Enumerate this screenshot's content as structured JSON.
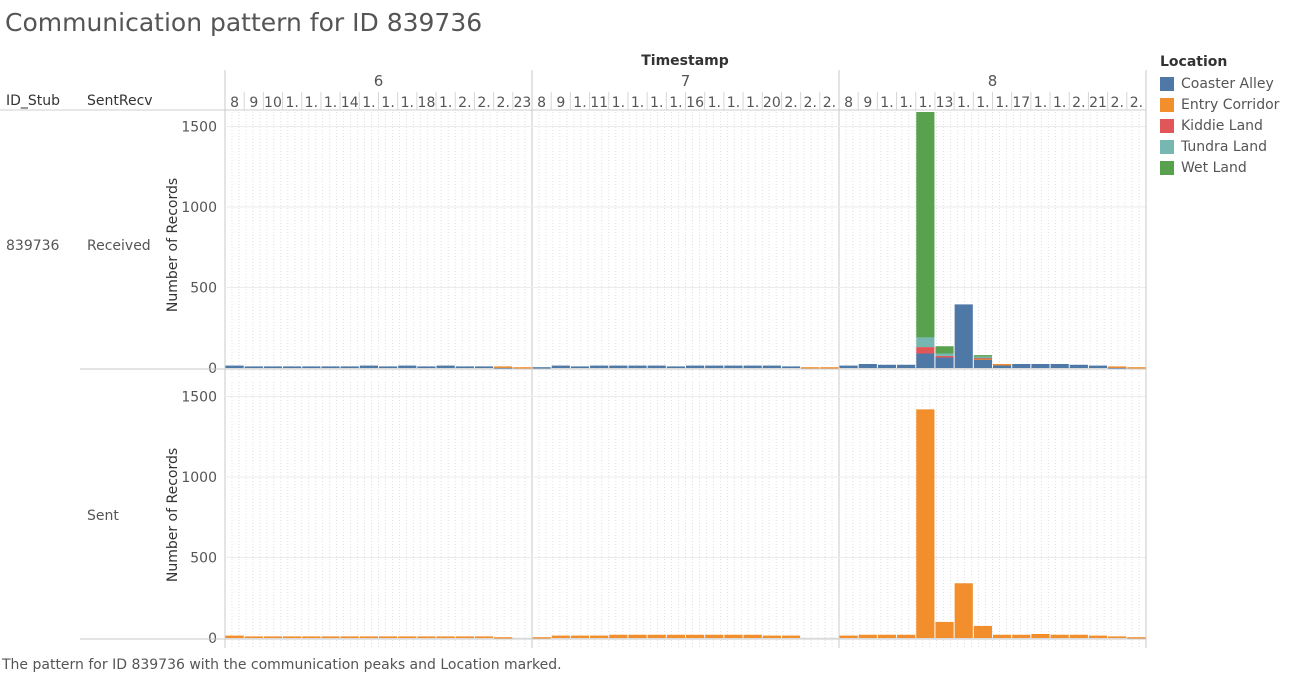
{
  "title": "Communication pattern for ID 839736",
  "caption": "The pattern for ID 839736 with the communication peaks and Location marked.",
  "colors": {
    "Coaster Alley": "#4e79a7",
    "Entry Corridor": "#f28e2b",
    "Kiddie Land": "#e15759",
    "Tundra Land": "#76b7b2",
    "Wet Land": "#59a14f"
  },
  "chart_data": {
    "type": "bar",
    "title": "Communication pattern for ID 839736",
    "column_header": "Timestamp",
    "row_headers": [
      "ID_Stub",
      "SentRecv"
    ],
    "id_stub": "839736",
    "ylabel": "Number of Records",
    "ylim": [
      0,
      1650
    ],
    "yticks": [
      0,
      500,
      1000,
      1500
    ],
    "grid": true,
    "legend": {
      "title": "Location",
      "position": "right",
      "entries": [
        "Coaster Alley",
        "Entry Corridor",
        "Kiddie Land",
        "Tundra Land",
        "Wet Land"
      ]
    },
    "days": [
      {
        "label": "6",
        "ticks": [
          "8",
          "9",
          "10",
          "1.",
          "1.",
          "1.",
          "14",
          "1.",
          "1.",
          "1.",
          "18",
          "1.",
          "2.",
          "2.",
          "2.",
          "23"
        ]
      },
      {
        "label": "7",
        "ticks": [
          "8",
          "9",
          "1.",
          "11",
          "1.",
          "1.",
          "1.",
          "1.",
          "16",
          "1.",
          "1.",
          "1.",
          "20",
          "2.",
          "2.",
          "2."
        ]
      },
      {
        "label": "8",
        "ticks": [
          "8",
          "9",
          "1.",
          "1.",
          "1.",
          "13",
          "1.",
          "1.",
          "1.",
          "17",
          "1.",
          "1.",
          "2.",
          "21",
          "2.",
          "2."
        ]
      }
    ],
    "panels": [
      {
        "name": "Received",
        "days": [
          {
            "Coaster Alley": [
              15,
              10,
              10,
              10,
              10,
              10,
              10,
              15,
              10,
              15,
              10,
              15,
              10,
              10,
              5,
              0
            ],
            "Entry Corridor": [
              0,
              0,
              0,
              0,
              0,
              0,
              0,
              0,
              0,
              0,
              0,
              0,
              0,
              0,
              5,
              5
            ]
          },
          {
            "Coaster Alley": [
              5,
              15,
              10,
              15,
              15,
              15,
              15,
              10,
              15,
              15,
              15,
              15,
              15,
              10,
              0,
              0
            ],
            "Entry Corridor": [
              0,
              0,
              0,
              0,
              0,
              0,
              0,
              0,
              0,
              0,
              0,
              0,
              0,
              0,
              5,
              5
            ]
          },
          {
            "Coaster Alley": [
              15,
              25,
              20,
              20,
              90,
              65,
              395,
              55,
              20,
              25,
              25,
              25,
              20,
              15,
              5,
              0
            ],
            "Entry Corridor": [
              0,
              0,
              0,
              0,
              0,
              0,
              0,
              5,
              5,
              0,
              0,
              0,
              0,
              0,
              5,
              5
            ],
            "Kiddie Land": [
              0,
              0,
              0,
              0,
              40,
              10,
              0,
              5,
              0,
              0,
              0,
              0,
              0,
              0,
              0,
              0
            ],
            "Tundra Land": [
              0,
              0,
              0,
              0,
              60,
              15,
              0,
              5,
              0,
              0,
              0,
              0,
              0,
              0,
              0,
              0
            ],
            "Wet Land": [
              0,
              0,
              0,
              0,
              1400,
              45,
              0,
              10,
              0,
              0,
              0,
              0,
              0,
              0,
              0,
              0
            ]
          }
        ]
      },
      {
        "name": "Sent",
        "days": [
          {
            "Entry Corridor": [
              15,
              10,
              10,
              10,
              10,
              10,
              10,
              10,
              10,
              10,
              10,
              10,
              10,
              10,
              5,
              0
            ]
          },
          {
            "Entry Corridor": [
              5,
              15,
              15,
              15,
              20,
              20,
              20,
              20,
              20,
              20,
              20,
              20,
              15,
              15,
              0,
              0
            ]
          },
          {
            "Entry Corridor": [
              15,
              20,
              20,
              20,
              1420,
              100,
              340,
              75,
              20,
              20,
              25,
              20,
              20,
              15,
              10,
              5
            ]
          }
        ]
      }
    ]
  }
}
